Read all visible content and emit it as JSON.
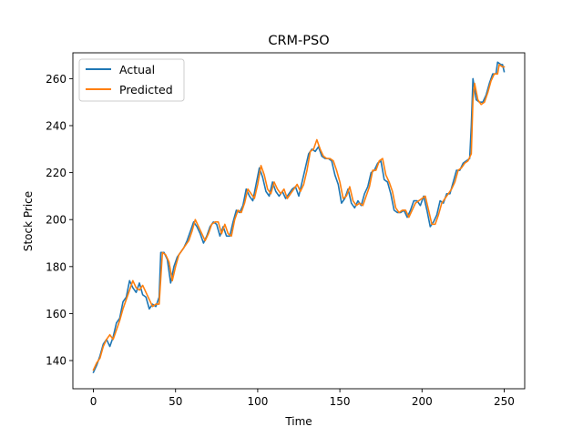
{
  "chart_data": {
    "type": "line",
    "title": "CRM-PSO",
    "xlabel": "Time",
    "ylabel": "Stock Price",
    "xlim": [
      -12.5,
      262.5
    ],
    "ylim": [
      128,
      271
    ],
    "xticks": [
      0,
      50,
      100,
      150,
      200,
      250
    ],
    "yticks": [
      140,
      160,
      180,
      200,
      220,
      240,
      260
    ],
    "grid": false,
    "legend_position": "top-left",
    "series": [
      {
        "name": "Actual",
        "color": "#1f77b4",
        "anchors": [
          [
            0,
            135
          ],
          [
            2,
            138
          ],
          [
            4,
            142
          ],
          [
            6,
            147
          ],
          [
            8,
            149
          ],
          [
            10,
            146
          ],
          [
            12,
            150
          ],
          [
            14,
            156
          ],
          [
            16,
            158
          ],
          [
            18,
            165
          ],
          [
            20,
            167
          ],
          [
            22,
            174
          ],
          [
            24,
            171
          ],
          [
            26,
            169
          ],
          [
            28,
            173
          ],
          [
            30,
            168
          ],
          [
            32,
            167
          ],
          [
            34,
            162
          ],
          [
            36,
            164
          ],
          [
            38,
            163
          ],
          [
            40,
            167
          ],
          [
            41,
            186
          ],
          [
            43,
            186
          ],
          [
            45,
            183
          ],
          [
            47,
            173
          ],
          [
            49,
            180
          ],
          [
            51,
            184
          ],
          [
            53,
            186
          ],
          [
            55,
            188
          ],
          [
            57,
            191
          ],
          [
            59,
            195
          ],
          [
            61,
            199
          ],
          [
            63,
            197
          ],
          [
            65,
            194
          ],
          [
            67,
            190
          ],
          [
            69,
            193
          ],
          [
            71,
            197
          ],
          [
            73,
            199
          ],
          [
            75,
            198
          ],
          [
            77,
            193
          ],
          [
            79,
            197
          ],
          [
            81,
            193
          ],
          [
            83,
            193
          ],
          [
            85,
            199
          ],
          [
            87,
            204
          ],
          [
            89,
            203
          ],
          [
            91,
            206
          ],
          [
            93,
            213
          ],
          [
            95,
            210
          ],
          [
            97,
            208
          ],
          [
            99,
            215
          ],
          [
            101,
            222
          ],
          [
            103,
            218
          ],
          [
            105,
            212
          ],
          [
            107,
            210
          ],
          [
            109,
            216
          ],
          [
            111,
            212
          ],
          [
            113,
            210
          ],
          [
            115,
            212
          ],
          [
            117,
            209
          ],
          [
            119,
            211
          ],
          [
            121,
            213
          ],
          [
            123,
            214
          ],
          [
            125,
            210
          ],
          [
            127,
            216
          ],
          [
            129,
            222
          ],
          [
            131,
            228
          ],
          [
            133,
            230
          ],
          [
            135,
            229
          ],
          [
            137,
            231
          ],
          [
            139,
            227
          ],
          [
            141,
            226
          ],
          [
            143,
            226
          ],
          [
            145,
            225
          ],
          [
            147,
            219
          ],
          [
            149,
            215
          ],
          [
            151,
            207
          ],
          [
            153,
            209
          ],
          [
            155,
            213
          ],
          [
            157,
            207
          ],
          [
            159,
            205
          ],
          [
            161,
            208
          ],
          [
            163,
            206
          ],
          [
            165,
            211
          ],
          [
            167,
            214
          ],
          [
            169,
            220
          ],
          [
            171,
            221
          ],
          [
            173,
            224
          ],
          [
            175,
            225
          ],
          [
            177,
            217
          ],
          [
            179,
            216
          ],
          [
            181,
            211
          ],
          [
            183,
            204
          ],
          [
            185,
            203
          ],
          [
            187,
            203
          ],
          [
            189,
            204
          ],
          [
            191,
            201
          ],
          [
            193,
            204
          ],
          [
            195,
            208
          ],
          [
            197,
            208
          ],
          [
            199,
            206
          ],
          [
            201,
            210
          ],
          [
            203,
            204
          ],
          [
            205,
            197
          ],
          [
            207,
            199
          ],
          [
            209,
            202
          ],
          [
            211,
            208
          ],
          [
            213,
            207
          ],
          [
            215,
            211
          ],
          [
            217,
            211
          ],
          [
            219,
            216
          ],
          [
            221,
            221
          ],
          [
            223,
            221
          ],
          [
            225,
            224
          ],
          [
            227,
            225
          ],
          [
            229,
            226
          ],
          [
            230,
            240
          ],
          [
            231,
            260
          ],
          [
            233,
            251
          ],
          [
            235,
            250
          ],
          [
            237,
            250
          ],
          [
            239,
            253
          ],
          [
            241,
            258
          ],
          [
            243,
            262
          ],
          [
            245,
            262
          ],
          [
            246,
            267
          ],
          [
            248,
            266
          ],
          [
            249,
            266
          ],
          [
            250,
            263
          ]
        ]
      },
      {
        "name": "Predicted",
        "color": "#ff7f0e",
        "anchors": [
          [
            0,
            136
          ],
          [
            2,
            139
          ],
          [
            4,
            141
          ],
          [
            6,
            146
          ],
          [
            8,
            149
          ],
          [
            10,
            151
          ],
          [
            12,
            149
          ],
          [
            14,
            153
          ],
          [
            16,
            157
          ],
          [
            18,
            162
          ],
          [
            20,
            166
          ],
          [
            22,
            170
          ],
          [
            24,
            174
          ],
          [
            26,
            171
          ],
          [
            28,
            170
          ],
          [
            30,
            172
          ],
          [
            32,
            169
          ],
          [
            34,
            166
          ],
          [
            36,
            163
          ],
          [
            38,
            164
          ],
          [
            40,
            164
          ],
          [
            42,
            186
          ],
          [
            44,
            185
          ],
          [
            46,
            182
          ],
          [
            48,
            174
          ],
          [
            50,
            180
          ],
          [
            52,
            185
          ],
          [
            54,
            187
          ],
          [
            56,
            189
          ],
          [
            58,
            191
          ],
          [
            60,
            195
          ],
          [
            62,
            200
          ],
          [
            64,
            197
          ],
          [
            66,
            194
          ],
          [
            68,
            191
          ],
          [
            70,
            194
          ],
          [
            72,
            198
          ],
          [
            74,
            199
          ],
          [
            76,
            199
          ],
          [
            78,
            194
          ],
          [
            80,
            198
          ],
          [
            82,
            194
          ],
          [
            84,
            193
          ],
          [
            86,
            200
          ],
          [
            88,
            204
          ],
          [
            90,
            203
          ],
          [
            92,
            207
          ],
          [
            94,
            213
          ],
          [
            96,
            211
          ],
          [
            98,
            209
          ],
          [
            100,
            215
          ],
          [
            102,
            223
          ],
          [
            104,
            219
          ],
          [
            106,
            213
          ],
          [
            108,
            211
          ],
          [
            110,
            216
          ],
          [
            112,
            213
          ],
          [
            114,
            211
          ],
          [
            116,
            213
          ],
          [
            118,
            209
          ],
          [
            120,
            211
          ],
          [
            122,
            213
          ],
          [
            124,
            215
          ],
          [
            126,
            212
          ],
          [
            128,
            215
          ],
          [
            130,
            221
          ],
          [
            132,
            229
          ],
          [
            134,
            230
          ],
          [
            136,
            234
          ],
          [
            138,
            230
          ],
          [
            140,
            227
          ],
          [
            142,
            226
          ],
          [
            144,
            226
          ],
          [
            146,
            225
          ],
          [
            148,
            221
          ],
          [
            150,
            216
          ],
          [
            152,
            209
          ],
          [
            154,
            210
          ],
          [
            156,
            214
          ],
          [
            158,
            208
          ],
          [
            160,
            206
          ],
          [
            162,
            207
          ],
          [
            164,
            206
          ],
          [
            166,
            210
          ],
          [
            168,
            214
          ],
          [
            170,
            221
          ],
          [
            172,
            221
          ],
          [
            174,
            225
          ],
          [
            176,
            226
          ],
          [
            178,
            219
          ],
          [
            180,
            216
          ],
          [
            182,
            212
          ],
          [
            184,
            205
          ],
          [
            186,
            203
          ],
          [
            188,
            204
          ],
          [
            190,
            204
          ],
          [
            192,
            201
          ],
          [
            194,
            204
          ],
          [
            196,
            207
          ],
          [
            198,
            208
          ],
          [
            200,
            209
          ],
          [
            202,
            210
          ],
          [
            204,
            204
          ],
          [
            206,
            198
          ],
          [
            208,
            198
          ],
          [
            210,
            202
          ],
          [
            212,
            207
          ],
          [
            214,
            209
          ],
          [
            216,
            211
          ],
          [
            218,
            213
          ],
          [
            220,
            216
          ],
          [
            222,
            221
          ],
          [
            224,
            222
          ],
          [
            226,
            224
          ],
          [
            228,
            225
          ],
          [
            230,
            228
          ],
          [
            231,
            251
          ],
          [
            232,
            258
          ],
          [
            234,
            251
          ],
          [
            236,
            249
          ],
          [
            238,
            250
          ],
          [
            240,
            254
          ],
          [
            242,
            259
          ],
          [
            244,
            262
          ],
          [
            246,
            262
          ],
          [
            247,
            266
          ],
          [
            249,
            265
          ],
          [
            250,
            265
          ]
        ]
      }
    ]
  }
}
